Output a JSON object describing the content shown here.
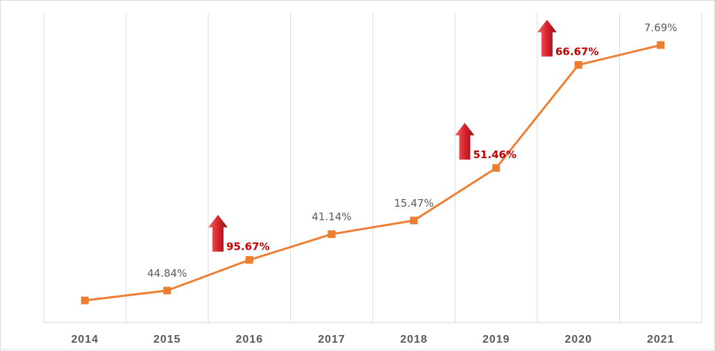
{
  "chart_data": {
    "type": "line",
    "categories": [
      "2014",
      "2015",
      "2016",
      "2017",
      "2018",
      "2019",
      "2020",
      "2021"
    ],
    "values": [
      100,
      144.84,
      283.41,
      400.0,
      461.88,
      699.56,
      1165.96,
      1255.63
    ],
    "annotations": [
      "",
      "44.84%",
      "95.67%",
      "41.14%",
      "15.47%",
      "51.46%",
      "66.67%",
      "7.69%"
    ],
    "highlighted": [
      false,
      false,
      true,
      false,
      false,
      true,
      true,
      false
    ],
    "ylim": [
      0,
      1400
    ],
    "grid": "vertical",
    "line_color": "#ED7D31",
    "highlight_color": "#C00000",
    "arrow_color": "#D9232E",
    "label_color": "#595959",
    "gridline_color": "#D9D9D9"
  }
}
